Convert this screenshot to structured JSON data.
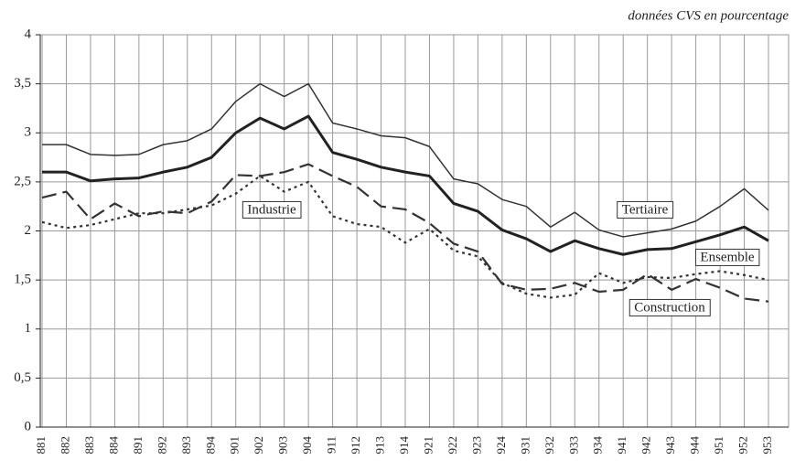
{
  "chart_data": {
    "type": "line",
    "subtitle": "données CVS en pourcentage",
    "categories": [
      "881",
      "882",
      "883",
      "884",
      "891",
      "892",
      "893",
      "894",
      "901",
      "902",
      "903",
      "904",
      "911",
      "912",
      "913",
      "914",
      "921",
      "922",
      "923",
      "924",
      "931",
      "932",
      "933",
      "934",
      "941",
      "942",
      "943",
      "944",
      "951",
      "952",
      "953"
    ],
    "series": [
      {
        "name": "Tertiaire",
        "color": "#333333",
        "style": "solid",
        "values": [
          2.88,
          2.88,
          2.78,
          2.77,
          2.78,
          2.88,
          2.92,
          3.04,
          3.32,
          3.5,
          3.37,
          3.5,
          3.1,
          3.04,
          2.97,
          2.95,
          2.86,
          2.53,
          2.48,
          2.32,
          2.25,
          2.04,
          2.19,
          2.01,
          1.94,
          1.98,
          2.02,
          2.1,
          2.25,
          2.43,
          2.21
        ]
      },
      {
        "name": "Ensemble",
        "color": "#222222",
        "style": "bold",
        "values": [
          2.6,
          2.6,
          2.51,
          2.53,
          2.54,
          2.6,
          2.65,
          2.75,
          3.0,
          3.15,
          3.04,
          3.17,
          2.8,
          2.73,
          2.65,
          2.6,
          2.56,
          2.28,
          2.2,
          2.01,
          1.92,
          1.79,
          1.9,
          1.82,
          1.76,
          1.81,
          1.82,
          1.89,
          1.96,
          2.04,
          1.9
        ]
      },
      {
        "name": "Industrie",
        "color": "#333333",
        "style": "dotted",
        "values": [
          2.09,
          2.03,
          2.06,
          2.12,
          2.18,
          2.18,
          2.22,
          2.26,
          2.38,
          2.56,
          2.4,
          2.5,
          2.15,
          2.07,
          2.04,
          1.88,
          2.02,
          1.8,
          1.74,
          1.47,
          1.36,
          1.32,
          1.35,
          1.57,
          1.47,
          1.53,
          1.52,
          1.56,
          1.59,
          1.55,
          1.5
        ]
      },
      {
        "name": "Construction",
        "color": "#333333",
        "style": "dashed",
        "values": [
          2.34,
          2.4,
          2.12,
          2.28,
          2.15,
          2.2,
          2.18,
          2.3,
          2.57,
          2.56,
          2.6,
          2.68,
          2.56,
          2.45,
          2.25,
          2.22,
          2.08,
          1.87,
          1.79,
          1.46,
          1.4,
          1.41,
          1.47,
          1.38,
          1.4,
          1.56,
          1.4,
          1.51,
          1.42,
          1.31,
          1.28
        ]
      }
    ],
    "ylim": [
      0,
      4
    ],
    "yticks": [
      0,
      {
        "value": 0.5,
        "label": "0,5"
      },
      1,
      {
        "value": 1.5,
        "label": "1,5"
      },
      2,
      {
        "value": 2.5,
        "label": "2,5"
      },
      3,
      {
        "value": 3.5,
        "label": "3,5"
      },
      4
    ],
    "grid": true
  }
}
